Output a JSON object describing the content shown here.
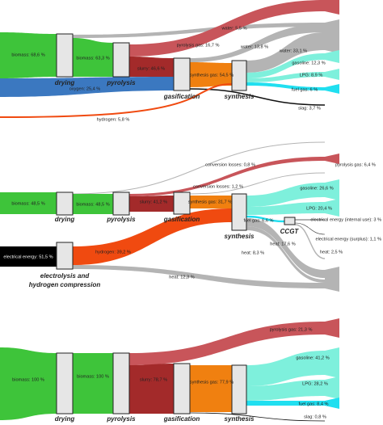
{
  "panels": [
    {
      "processes": [
        "drying",
        "pyrolysis",
        "gasification",
        "synthesis"
      ],
      "flows": [
        "biomass: 68,6 %",
        "biomass: 63,3 %",
        "water: 5,5 %",
        "pyrolysis gas: 16,7 %",
        "slurry: 46,6 %",
        "oxygen: 25,4 %",
        "synthesis gas: 54,5 %",
        "water: 13,8 %",
        "water: 33,1 %",
        "gasoline: 12,3 %",
        "LPG: 8,9 %",
        "fuel gas: 6 %",
        "slag: 3,7 %",
        "hydrogen: 5,8 %"
      ]
    },
    {
      "processes": [
        "drying",
        "pyrolysis",
        "gasification",
        "synthesis",
        "CCGT"
      ],
      "electrolysis": [
        "electrolysis and",
        "hydrogen compression"
      ],
      "flows": [
        "conversion losses: 0,8 %",
        "pyrolysis gas: 6,4 %",
        "conversion losses: 1,2 %",
        "biomass: 48,5 %",
        "biomass: 48,5 %",
        "slurry: 41,2 %",
        "synthesis gas: 31,7 %",
        "gasoline: 26,6 %",
        "LPG: 20,4 %",
        "fuel gas: 6,6 %",
        "electrical energy (internal use): 3 %",
        "electrical energy (surplus): 1,1 %",
        "heat: 17,6 %",
        "heat: 8,3 %",
        "heat: 2,5 %",
        "electrical energy: 51,5 %",
        "hydrogen: 39,2 %",
        "heat: 12,3 %"
      ]
    },
    {
      "processes": [
        "drying",
        "pyrolysis",
        "gasification",
        "synthesis"
      ],
      "flows": [
        "biomass: 100 %",
        "biomass: 100 %",
        "pyrolysis gas: 21,3 %",
        "slurry: 78,7 %",
        "synthesis gas: 77,9 %",
        "gasoline: 41,2 %",
        "LPG: 28,2 %",
        "fuel gas: 8,4 %",
        "slag: 0,8 %"
      ]
    }
  ]
}
